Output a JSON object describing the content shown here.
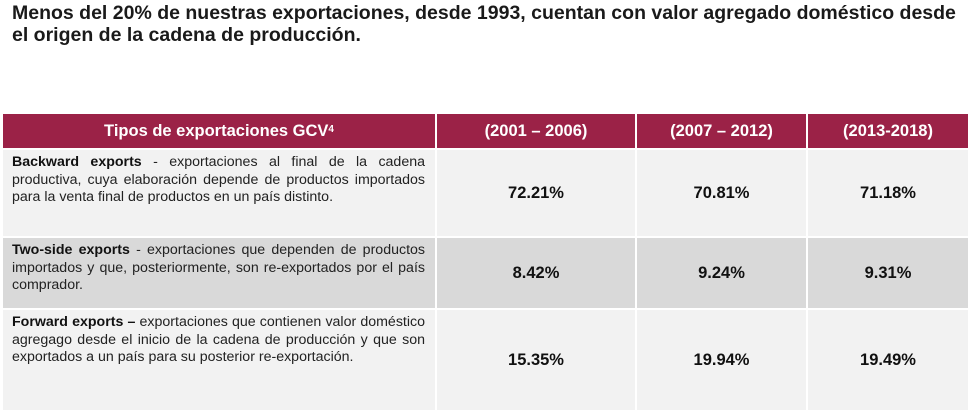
{
  "title": "Menos del 20% de nuestras exportaciones, desde 1993, cuentan con valor agregado doméstico desde el origen de la cadena de producción.",
  "table": {
    "headers": {
      "type_label": "Tipos de exportaciones GCV",
      "type_superscript": "4",
      "periods": [
        "(2001 – 2006)",
        "(2007 – 2012)",
        "(2013-2018)"
      ]
    },
    "rows": [
      {
        "name": "Backward exports",
        "description": " - exportaciones al final de la cadena productiva, cuya elaboración depende de productos importados para la venta final de productos en un país distinto.",
        "values": [
          "72.21%",
          "70.81%",
          "71.18%"
        ]
      },
      {
        "name": "Two-side exports",
        "description": " - exportaciones que dependen de productos importados y que, posteriormente, son re-exportados por el país comprador.",
        "values": [
          "8.42%",
          "9.24%",
          "9.31%"
        ]
      },
      {
        "name": "Forward exports –",
        "description": " exportaciones que contienen valor doméstico agregago desde el inicio de la cadena de producción y que son exportados a un país para su posterior re-exportación.",
        "values": [
          "15.35%",
          "19.94%",
          "19.49%"
        ]
      }
    ]
  },
  "colors": {
    "header_bg": "#9b2247",
    "header_text": "#ffffff",
    "row_light": "#f2f2f2",
    "row_dark": "#d9d9d9"
  }
}
